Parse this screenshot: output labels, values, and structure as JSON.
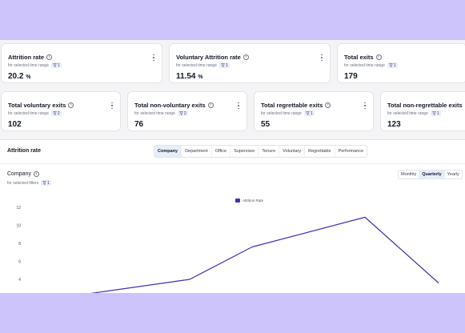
{
  "cards_row1": [
    {
      "title": "Attrition rate",
      "sub": "for selected time range",
      "filter": "1",
      "value": "20.2",
      "unit": "%"
    },
    {
      "title": "Voluntary Attrition rate",
      "sub": "for selected time range",
      "filter": "1",
      "value": "11.54",
      "unit": "%"
    },
    {
      "title": "Total exits",
      "sub": "for selected time range",
      "filter": "1",
      "value": "179",
      "unit": ""
    }
  ],
  "cards_row2": [
    {
      "title": "Total voluntary exits",
      "sub": "for selected time range",
      "filter": "2",
      "value": "102"
    },
    {
      "title": "Total non-voluntary exits",
      "sub": "for selected time range",
      "filter": "2",
      "value": "76"
    },
    {
      "title": "Total regrettable exits",
      "sub": "for selected time range",
      "filter": "1",
      "value": "55"
    },
    {
      "title": "Total non-regrettable exits",
      "sub": "for selected time range",
      "filter": "1",
      "value": "123"
    }
  ],
  "panel": {
    "title": "Attrition rate",
    "tabs": [
      "Company",
      "Department",
      "Office",
      "Supervisor",
      "Tenure",
      "Voluntary",
      "Regrettable",
      "Performance"
    ],
    "active_tab": "Company",
    "chart_title": "Company",
    "chart_sub": "for selected filters",
    "chart_filter": "1",
    "periods": [
      "Monthly",
      "Quarterly",
      "Yearly"
    ],
    "active_period": "Quarterly"
  },
  "icons": {
    "info": "info-circle-icon",
    "filter": "filter-funnel-icon",
    "more": "kebab-menu-icon"
  },
  "colors": {
    "accent": "#4c2bb8",
    "background": "#cdc4fb",
    "active_tab": "#e8eef8"
  },
  "chart_data": {
    "type": "line",
    "series": [
      {
        "name": "Attrition Rate",
        "color": "#4c2bb8",
        "x": [
          1,
          2,
          3,
          4,
          5
        ],
        "values": [
          2.4,
          4.0,
          7.6,
          10.9,
          3.6
        ]
      }
    ],
    "yticks": [
      "12",
      "10",
      "8",
      "6",
      "4"
    ],
    "ylim": [
      4,
      12
    ],
    "grid": false,
    "legend": "top-center"
  }
}
